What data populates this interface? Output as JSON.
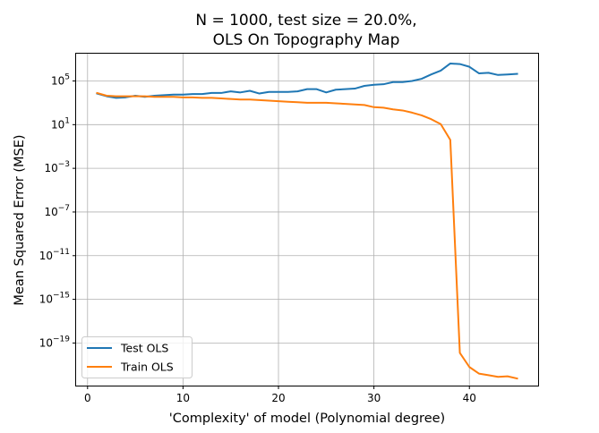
{
  "chart_data": {
    "type": "line",
    "title": [
      "N = 1000, test size = 20.0%,",
      "OLS On Topography Map"
    ],
    "xlabel": "'Complexity' of model (Polynomial degree)",
    "ylabel": "Mean Squared Error (MSE)",
    "xlim": [
      -1.2,
      47.2
    ],
    "x_ticks": [
      0,
      10,
      20,
      30,
      40
    ],
    "x_tick_labels": [
      "0",
      "10",
      "20",
      "30",
      "40"
    ],
    "y_scale": "log",
    "ylog_lim": [
      -22.9,
      7.5
    ],
    "y_ticks_exp": [
      5,
      1,
      -3,
      -7,
      -11,
      -15,
      -19
    ],
    "grid": true,
    "legend": {
      "placement": "lower-left"
    },
    "x": [
      1,
      2,
      3,
      4,
      5,
      6,
      7,
      8,
      9,
      10,
      11,
      12,
      13,
      14,
      15,
      16,
      17,
      18,
      19,
      20,
      21,
      22,
      23,
      24,
      25,
      26,
      27,
      28,
      29,
      30,
      31,
      32,
      33,
      34,
      35,
      36,
      37,
      38,
      39,
      40,
      41,
      42,
      43,
      44,
      45
    ],
    "series": [
      {
        "name": "Test OLS",
        "color": "#1f77b4",
        "log10_values": [
          3.85,
          3.6,
          3.45,
          3.5,
          3.65,
          3.55,
          3.65,
          3.7,
          3.75,
          3.75,
          3.8,
          3.8,
          3.9,
          3.9,
          4.05,
          3.95,
          4.1,
          3.85,
          4.0,
          4.0,
          4.0,
          4.05,
          4.25,
          4.25,
          3.95,
          4.2,
          4.25,
          4.3,
          4.55,
          4.65,
          4.7,
          4.9,
          4.9,
          5.0,
          5.2,
          5.6,
          5.95,
          6.6,
          6.55,
          6.3,
          5.7,
          5.75,
          5.55,
          5.6,
          5.65
        ]
      },
      {
        "name": "Train OLS",
        "color": "#ff7f0e",
        "log10_values": [
          3.9,
          3.65,
          3.6,
          3.6,
          3.6,
          3.6,
          3.55,
          3.55,
          3.55,
          3.5,
          3.5,
          3.45,
          3.45,
          3.4,
          3.35,
          3.3,
          3.3,
          3.25,
          3.2,
          3.15,
          3.1,
          3.05,
          3.0,
          3.0,
          3.0,
          2.95,
          2.9,
          2.85,
          2.8,
          2.6,
          2.55,
          2.4,
          2.3,
          2.1,
          1.85,
          1.5,
          1.05,
          -0.4,
          -19.9,
          -21.2,
          -21.8,
          -21.95,
          -22.1,
          -22.05,
          -22.25
        ]
      }
    ]
  }
}
